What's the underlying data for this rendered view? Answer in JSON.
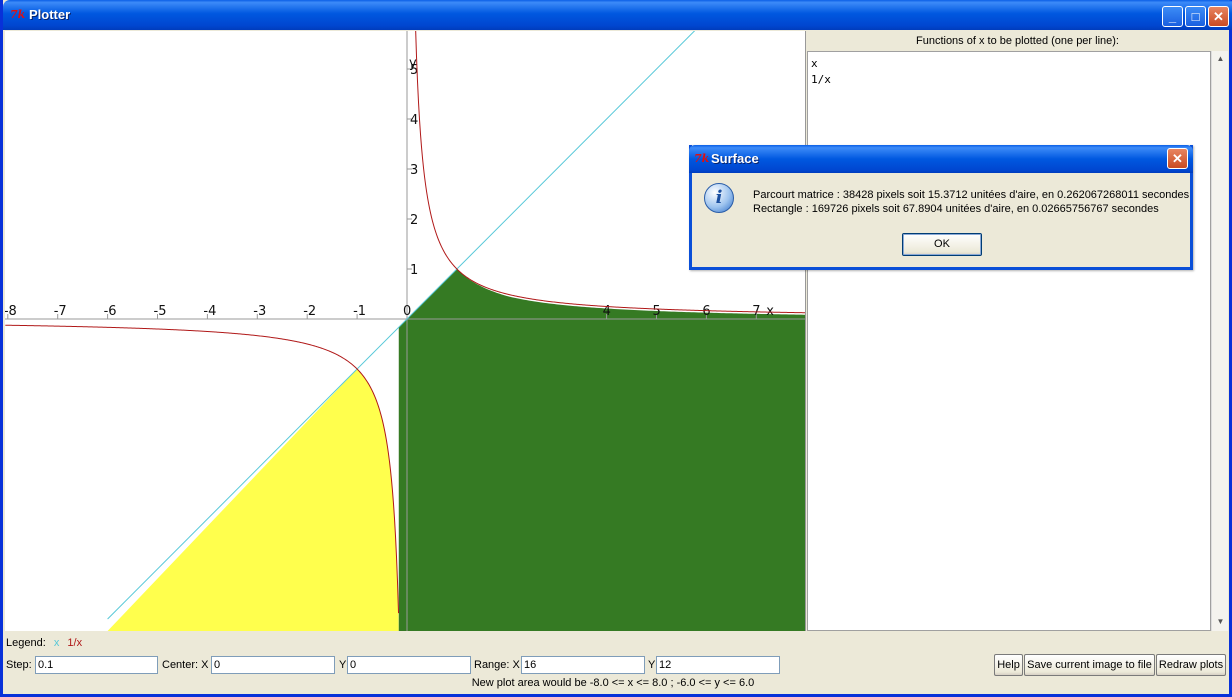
{
  "window": {
    "title": "Plotter",
    "icon": "tk-feather-icon",
    "controls": {
      "minimize": "_",
      "maximize": "□",
      "close": "✕"
    }
  },
  "plot": {
    "functions": [
      "x",
      "1/x"
    ],
    "x_range": [
      -8,
      8
    ],
    "y_range": [
      -6,
      6
    ],
    "x_axis_label": "x",
    "y_axis_label": "y",
    "x_ticks": [
      "-8",
      "-7",
      "-6",
      "-5",
      "-4",
      "-3",
      "-2",
      "-1",
      "0",
      "4",
      "5",
      "6",
      "7"
    ],
    "y_ticks": [
      "1",
      "2",
      "3",
      "4",
      "5"
    ],
    "colors": {
      "line_x": "#56c8d8",
      "line_inv": "#b01818",
      "fill_yellow": "#ffff4d",
      "fill_green": "#357a23",
      "axis": "#999999"
    }
  },
  "panel": {
    "label": "Functions of x to be plotted (one per line):",
    "lines": [
      "x",
      "1/x"
    ]
  },
  "legend": {
    "label": "Legend:",
    "items": [
      {
        "text": "x",
        "color": "#56c8d8"
      },
      {
        "text": "1/x",
        "color": "#b01818"
      }
    ]
  },
  "controls": {
    "step_label": "Step:",
    "step_value": "0.1",
    "center_label": "Center: X",
    "center_x": "0",
    "center_y_label": "Y",
    "center_y": "0",
    "range_label": "Range: X",
    "range_x": "16",
    "range_y_label": "Y",
    "range_y": "12",
    "help_button": "Help",
    "save_button": "Save current image to file",
    "redraw_button": "Redraw plots"
  },
  "status": "New plot area would be -8.0 <= x <= 8.0 ; -6.0 <= y <= 6.0",
  "dialog": {
    "title": "Surface",
    "line1": "Parcourt matrice : 38428 pixels soit 15.3712 unitées d'aire, en 0.262067268011 secondes",
    "line2": "Rectangle : 169726 pixels soit 67.8904 unitées d'aire, en 0.02665756767 secondes",
    "ok": "OK"
  }
}
